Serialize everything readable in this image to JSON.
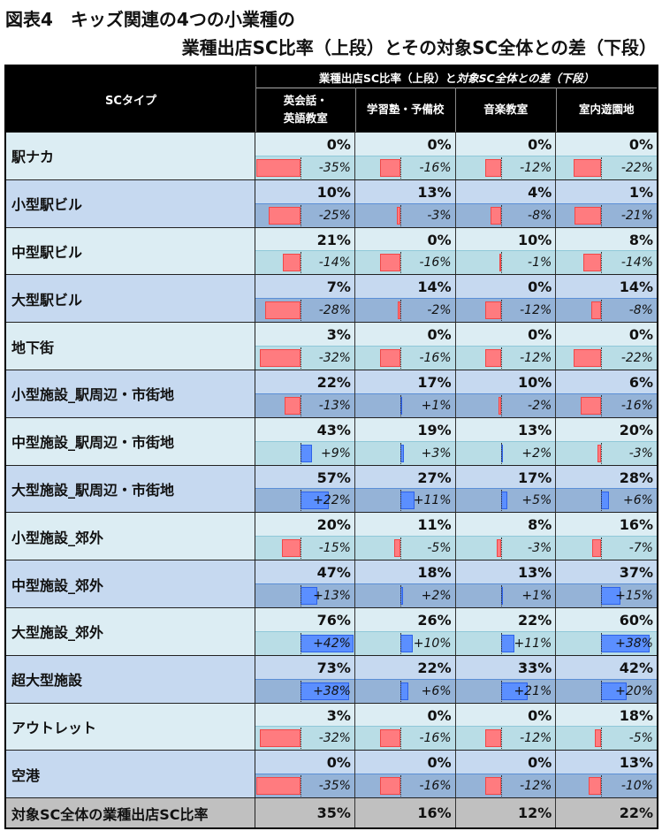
{
  "title": {
    "line1": "図表4　キッズ関連の4つの小業種の",
    "line2": "業種出店SC比率（上段）とその対象SC全体との差（下段）"
  },
  "header": {
    "sc_type": "SCタイプ",
    "span_upright": "業種出店SC比率（上段）と",
    "span_italic": "対象SC全体との差（下段）",
    "columns": [
      "英会話・\n英語教室",
      "学習塾・予備校",
      "音楽教室",
      "室内遊園地"
    ]
  },
  "footer": {
    "label": "対象SC全体の業種出店SC比率",
    "values": [
      "35%",
      "16%",
      "12%",
      "22%"
    ]
  },
  "colors": {
    "row_cyan": "#dcedf3",
    "row_blue": "#c6d9f0",
    "negative_bar": "#ff7b7f",
    "positive_bar": "#5b8fff",
    "header_bg": "#000000",
    "footer_bg": "#c0c0c0"
  },
  "chart_data": {
    "type": "table",
    "title": "図表4　キッズ関連の4つの小業種の業種出店SC比率（上段）とその対象SC全体との差（下段）",
    "columns": [
      "英会話・英語教室",
      "学習塾・予備校",
      "音楽教室",
      "室内遊園地"
    ],
    "rows": [
      {
        "label": "駅ナカ",
        "ratio": [
          0,
          0,
          0,
          0
        ],
        "diff": [
          -35,
          -16,
          -12,
          -22
        ]
      },
      {
        "label": "小型駅ビル",
        "ratio": [
          10,
          13,
          4,
          1
        ],
        "diff": [
          -25,
          -3,
          -8,
          -21
        ]
      },
      {
        "label": "中型駅ビル",
        "ratio": [
          21,
          0,
          10,
          8
        ],
        "diff": [
          -14,
          -16,
          -1,
          -14
        ]
      },
      {
        "label": "大型駅ビル",
        "ratio": [
          7,
          14,
          0,
          14
        ],
        "diff": [
          -28,
          -2,
          -12,
          -8
        ]
      },
      {
        "label": "地下街",
        "ratio": [
          3,
          0,
          0,
          0
        ],
        "diff": [
          -32,
          -16,
          -12,
          -22
        ]
      },
      {
        "label": "小型施設_駅周辺・市街地",
        "ratio": [
          22,
          17,
          10,
          6
        ],
        "diff": [
          -13,
          1,
          -2,
          -16
        ]
      },
      {
        "label": "中型施設_駅周辺・市街地",
        "ratio": [
          43,
          19,
          13,
          20
        ],
        "diff": [
          9,
          3,
          2,
          -3
        ]
      },
      {
        "label": "大型施設_駅周辺・市街地",
        "ratio": [
          57,
          27,
          17,
          28
        ],
        "diff": [
          22,
          11,
          5,
          6
        ]
      },
      {
        "label": "小型施設_郊外",
        "ratio": [
          20,
          11,
          8,
          16
        ],
        "diff": [
          -15,
          -5,
          -3,
          -7
        ]
      },
      {
        "label": "中型施設_郊外",
        "ratio": [
          47,
          18,
          13,
          37
        ],
        "diff": [
          13,
          2,
          1,
          15
        ]
      },
      {
        "label": "大型施設_郊外",
        "ratio": [
          76,
          26,
          22,
          60
        ],
        "diff": [
          42,
          10,
          11,
          38
        ]
      },
      {
        "label": "超大型施設",
        "ratio": [
          73,
          22,
          33,
          42
        ],
        "diff": [
          38,
          6,
          21,
          20
        ]
      },
      {
        "label": "アウトレット",
        "ratio": [
          3,
          0,
          0,
          18
        ],
        "diff": [
          -32,
          -16,
          -12,
          -5
        ]
      },
      {
        "label": "空港",
        "ratio": [
          0,
          0,
          0,
          13
        ],
        "diff": [
          -35,
          -16,
          -12,
          -10
        ]
      }
    ],
    "total_row": {
      "label": "対象SC全体の業種出店SC比率",
      "ratio": [
        35,
        16,
        12,
        22
      ]
    },
    "units": "%"
  }
}
